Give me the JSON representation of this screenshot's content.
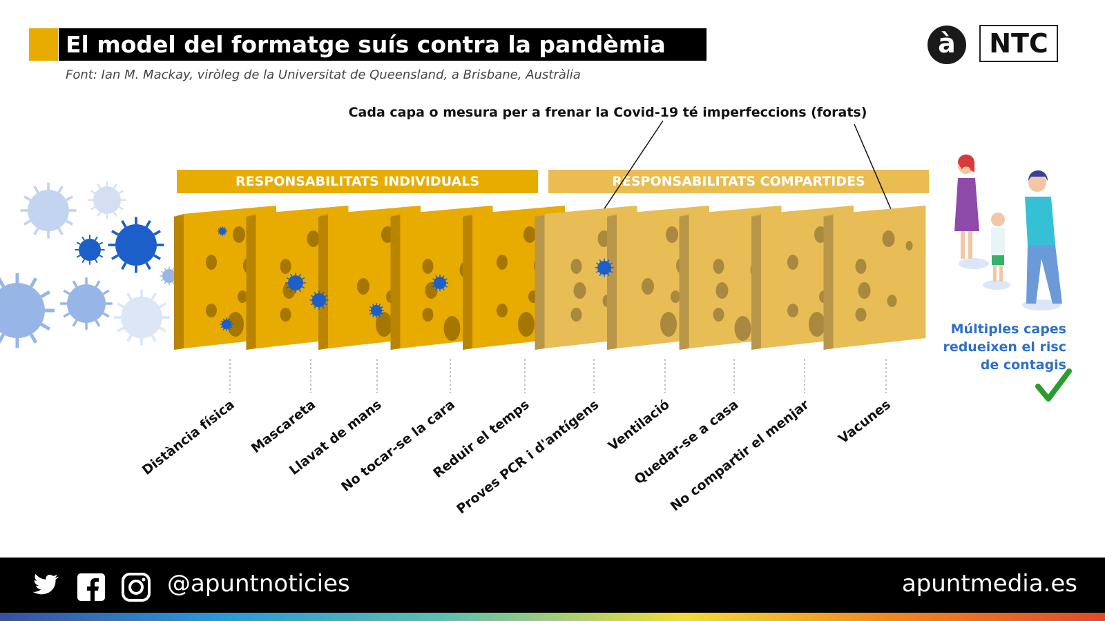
{
  "title": "El model del formatge suís contra la pandèmia",
  "subtitle": "Font: Ian M. Mackay, viròleg de la Universitat de Queensland, a Brisbane, Austràlia",
  "callout": "Cada capa o mesura per a frenar la Covid-19 té imperfeccions (forats)",
  "groups": {
    "individual": "RESPONSABILITATS INDIVIDUALS",
    "shared": "RESPONSABILITATS COMPARTIDES"
  },
  "layers": [
    "Distància física",
    "Mascareta",
    "Llavat de mans",
    "No tocar-se la cara",
    "Reduir el temps",
    "Proves PCR i d'antígens",
    "Ventilació",
    "Quedar-se a casa",
    "No compartir el menjar",
    "Vacunes"
  ],
  "conclusion": [
    "Múltiples capes",
    "redueixen el risc",
    "de contagis"
  ],
  "logos": {
    "a": "à",
    "ntc": "NTC"
  },
  "footer": {
    "handle": "@apuntnoticies",
    "site": "apuntmedia.es",
    "icons": [
      "twitter-icon",
      "facebook-icon",
      "instagram-icon"
    ]
  },
  "colors": {
    "individual": "#e8ac00",
    "shared": "#e9bd52",
    "virus": "#1d5fc9",
    "conclusion": "#2e6fc9",
    "check": "#2a9d2a"
  }
}
